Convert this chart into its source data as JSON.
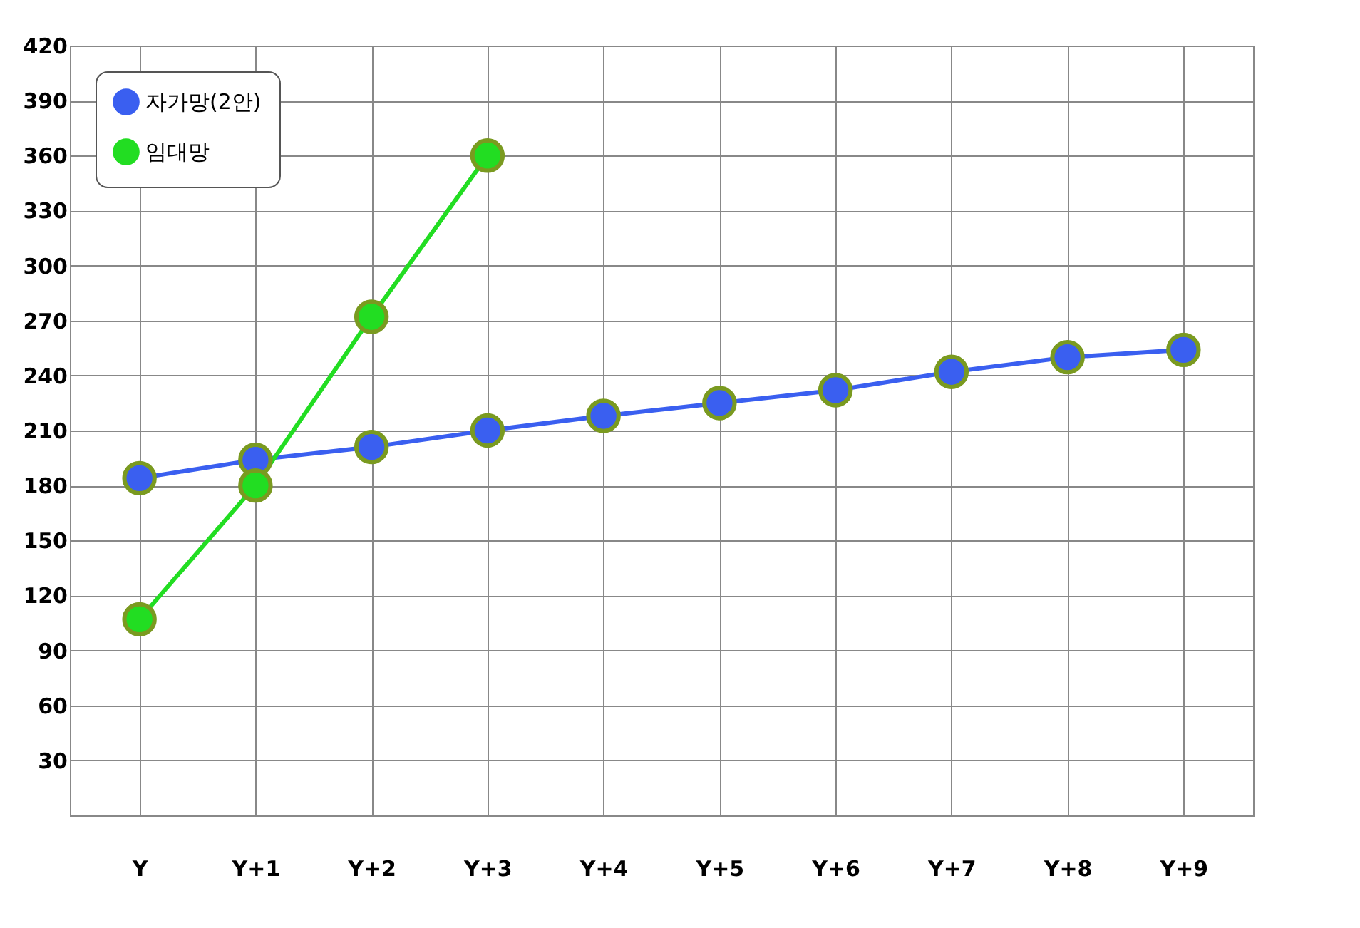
{
  "chart_data": {
    "type": "line",
    "categories": [
      "Y",
      "Y+1",
      "Y+2",
      "Y+3",
      "Y+4",
      "Y+5",
      "Y+6",
      "Y+7",
      "Y+8",
      "Y+9"
    ],
    "series": [
      {
        "name": "자가망(2안)",
        "color": "#3a5ff0",
        "values": [
          184,
          194,
          201,
          210,
          218,
          225,
          232,
          242,
          250,
          254
        ]
      },
      {
        "name": "임대망",
        "color": "#22dd22",
        "values": [
          107,
          180,
          272,
          360,
          null,
          null,
          null,
          null,
          null,
          null
        ]
      }
    ],
    "ylim": [
      0,
      420
    ],
    "yticks": [
      30,
      60,
      90,
      120,
      150,
      180,
      210,
      240,
      270,
      300,
      330,
      360,
      390,
      420
    ],
    "grid": true,
    "legend": "top left",
    "marker": "circle",
    "line_style": "solid"
  }
}
